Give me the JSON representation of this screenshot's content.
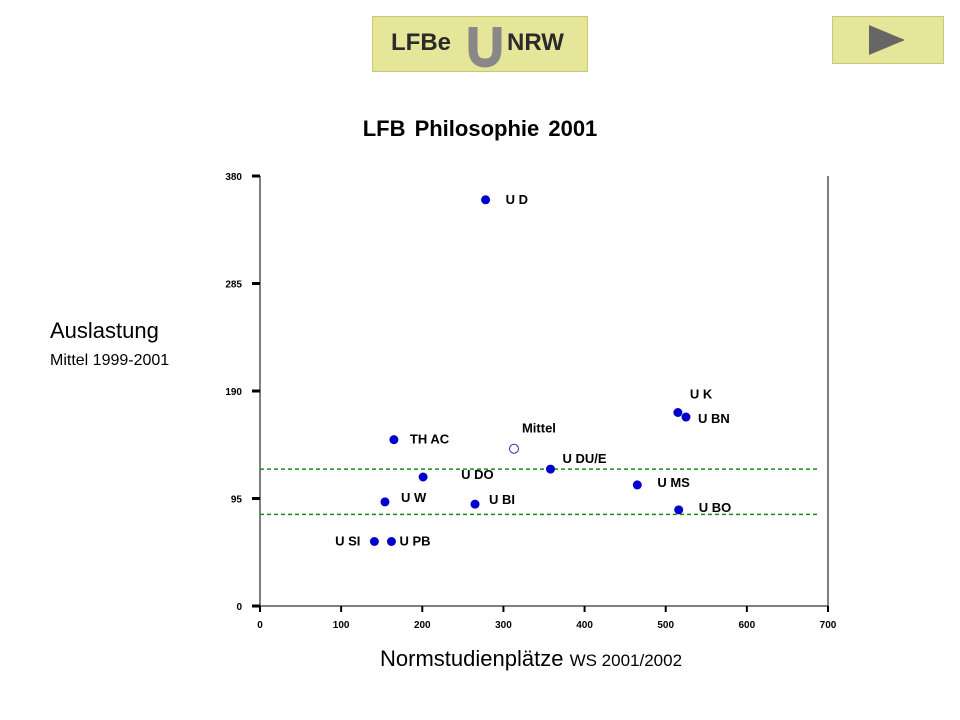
{
  "header": {
    "logo_left": "LFBe",
    "logo_right": "NRW",
    "logo_icon": "u-magnet-icon",
    "next_icon": "play-arrow-icon",
    "colors": {
      "logo_bg": "#e6e69a",
      "logo_icon": "#888888",
      "arrow": "#666666"
    }
  },
  "chart_data": {
    "type": "scatter",
    "title": "LFB Philosophie 2001",
    "ylabel": "Auslastung",
    "ylabel_sub": "Mittel 1999-2001",
    "xlabel": "Normstudienplätze",
    "xlabel_sub": "WS 2001/2002",
    "xlim": [
      0,
      700
    ],
    "ylim": [
      0,
      380
    ],
    "xticks": [
      0,
      100,
      200,
      300,
      400,
      500,
      600,
      700
    ],
    "yticks": [
      0,
      95,
      190,
      285,
      380
    ],
    "point_color": "#0000cc",
    "mean_color": "#3333aa",
    "reference_lines": {
      "color": "#1a8a1a",
      "style": "dashed",
      "y": [
        121,
        81
      ]
    },
    "points": [
      {
        "label": "U D",
        "x": 278,
        "y": 359,
        "type": "filled"
      },
      {
        "label": "U K",
        "x": 515,
        "y": 171,
        "type": "filled"
      },
      {
        "label": "U BN",
        "x": 525,
        "y": 167,
        "type": "filled"
      },
      {
        "label": "TH AC",
        "x": 165,
        "y": 147,
        "type": "filled"
      },
      {
        "label": "Mittel",
        "x": 313,
        "y": 139,
        "type": "mean"
      },
      {
        "label": "U DU/E",
        "x": 358,
        "y": 121,
        "type": "filled"
      },
      {
        "label": "U DO",
        "x": 201,
        "y": 114,
        "type": "filled"
      },
      {
        "label": "U MS",
        "x": 465,
        "y": 107,
        "type": "filled"
      },
      {
        "label": "U W",
        "x": 154,
        "y": 92,
        "type": "filled"
      },
      {
        "label": "U BI",
        "x": 265,
        "y": 90,
        "type": "filled"
      },
      {
        "label": "U BO",
        "x": 516,
        "y": 85,
        "type": "filled"
      },
      {
        "label": "U SI",
        "x": 141,
        "y": 57,
        "type": "filled"
      },
      {
        "label": "U PB",
        "x": 162,
        "y": 57,
        "type": "filled"
      }
    ]
  }
}
